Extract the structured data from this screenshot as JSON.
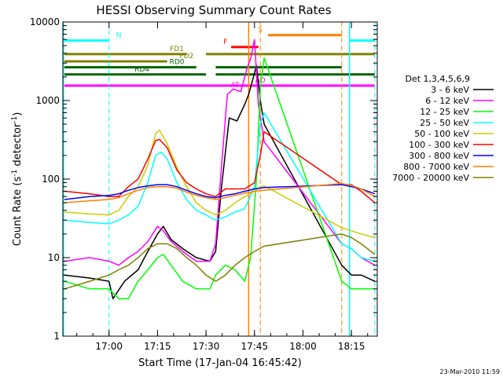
{
  "chart_data": {
    "type": "line",
    "title": "HESSI Observing Summary Count Rates",
    "xlabel": "Start Time (17-Jan-04 16:45:42)",
    "ylabel_parts": [
      "Count Rate (s",
      "-1",
      " detector",
      "-1",
      ")"
    ],
    "ylog": true,
    "ylim": [
      1,
      10000
    ],
    "xlim": [
      16.762,
      18.383
    ],
    "x_ticks": [
      {
        "x": 17.0,
        "label": "17:00"
      },
      {
        "x": 17.25,
        "label": "17:15"
      },
      {
        "x": 17.5,
        "label": "17:30"
      },
      {
        "x": 17.75,
        "label": "17:45"
      },
      {
        "x": 18.0,
        "label": "18:00"
      },
      {
        "x": 18.25,
        "label": "18:15"
      }
    ],
    "y_ticks": [
      {
        "y": 1,
        "label": "1"
      },
      {
        "y": 10,
        "label": "10"
      },
      {
        "y": 100,
        "label": "100"
      },
      {
        "y": 1000,
        "label": "1000"
      },
      {
        "y": 10000,
        "label": "10000"
      }
    ],
    "legend_title": "Det 1,3,4,5,6,9",
    "legend_placement": "right",
    "gaps": [
      [
        17.8,
        18.2
      ]
    ],
    "series": [
      {
        "name": "3 - 6 keV",
        "color": "#000000",
        "points": [
          [
            16.77,
            6
          ],
          [
            16.9,
            5.5
          ],
          [
            17.0,
            5
          ],
          [
            17.02,
            3
          ],
          [
            17.08,
            5
          ],
          [
            17.15,
            7
          ],
          [
            17.2,
            12
          ],
          [
            17.25,
            20
          ],
          [
            17.28,
            25
          ],
          [
            17.32,
            17
          ],
          [
            17.38,
            13
          ],
          [
            17.45,
            10
          ],
          [
            17.52,
            9
          ],
          [
            17.55,
            12
          ],
          [
            17.58,
            80
          ],
          [
            17.62,
            600
          ],
          [
            17.66,
            550
          ],
          [
            17.7,
            900
          ],
          [
            17.72,
            1200
          ],
          [
            17.74,
            1800
          ],
          [
            17.76,
            2800
          ],
          [
            17.78,
            1000
          ],
          [
            17.8,
            500
          ],
          [
            18.2,
            8
          ],
          [
            18.25,
            6
          ],
          [
            18.3,
            6
          ],
          [
            18.37,
            5
          ]
        ]
      },
      {
        "name": "6 - 12 keV",
        "color": "#ff00ff",
        "points": [
          [
            16.77,
            9
          ],
          [
            16.9,
            10
          ],
          [
            17.0,
            9
          ],
          [
            17.05,
            8
          ],
          [
            17.1,
            10
          ],
          [
            17.15,
            12
          ],
          [
            17.2,
            16
          ],
          [
            17.25,
            25
          ],
          [
            17.28,
            22
          ],
          [
            17.32,
            16
          ],
          [
            17.38,
            12
          ],
          [
            17.45,
            9
          ],
          [
            17.52,
            9
          ],
          [
            17.55,
            15
          ],
          [
            17.58,
            150
          ],
          [
            17.61,
            1200
          ],
          [
            17.64,
            1400
          ],
          [
            17.68,
            1300
          ],
          [
            17.71,
            2500
          ],
          [
            17.73,
            3400
          ],
          [
            17.75,
            6000
          ],
          [
            17.77,
            900
          ],
          [
            17.8,
            300
          ],
          [
            18.2,
            15
          ],
          [
            18.25,
            13
          ],
          [
            18.3,
            10
          ],
          [
            18.37,
            8
          ]
        ]
      },
      {
        "name": "12 - 25 keV",
        "color": "#00ff00",
        "points": [
          [
            16.77,
            5
          ],
          [
            16.9,
            4
          ],
          [
            17.0,
            4
          ],
          [
            17.05,
            3
          ],
          [
            17.1,
            3
          ],
          [
            17.15,
            5
          ],
          [
            17.2,
            7
          ],
          [
            17.25,
            10
          ],
          [
            17.28,
            11
          ],
          [
            17.32,
            8
          ],
          [
            17.38,
            5
          ],
          [
            17.45,
            4
          ],
          [
            17.52,
            4
          ],
          [
            17.55,
            6
          ],
          [
            17.6,
            8
          ],
          [
            17.65,
            7
          ],
          [
            17.7,
            5
          ],
          [
            17.73,
            10
          ],
          [
            17.76,
            100
          ],
          [
            17.78,
            1500
          ],
          [
            17.8,
            3500
          ],
          [
            18.2,
            5
          ],
          [
            18.25,
            4
          ],
          [
            18.3,
            4
          ],
          [
            18.37,
            4
          ]
        ]
      },
      {
        "name": "25 - 50 keV",
        "color": "#00ffff",
        "points": [
          [
            16.77,
            30
          ],
          [
            16.9,
            28
          ],
          [
            17.0,
            27
          ],
          [
            17.05,
            30
          ],
          [
            17.1,
            35
          ],
          [
            17.15,
            45
          ],
          [
            17.2,
            90
          ],
          [
            17.24,
            200
          ],
          [
            17.27,
            220
          ],
          [
            17.3,
            180
          ],
          [
            17.35,
            90
          ],
          [
            17.4,
            55
          ],
          [
            17.45,
            40
          ],
          [
            17.5,
            35
          ],
          [
            17.55,
            30
          ],
          [
            17.6,
            33
          ],
          [
            17.65,
            38
          ],
          [
            17.7,
            42
          ],
          [
            17.75,
            80
          ],
          [
            17.78,
            500
          ],
          [
            17.8,
            700
          ],
          [
            18.2,
            15
          ],
          [
            18.25,
            13
          ],
          [
            18.3,
            10
          ],
          [
            18.37,
            9
          ]
        ]
      },
      {
        "name": "50 - 100 keV",
        "color": "#cccc00",
        "points": [
          [
            16.77,
            38
          ],
          [
            16.9,
            36
          ],
          [
            17.0,
            35
          ],
          [
            17.05,
            40
          ],
          [
            17.1,
            60
          ],
          [
            17.15,
            80
          ],
          [
            17.2,
            150
          ],
          [
            17.24,
            380
          ],
          [
            17.26,
            420
          ],
          [
            17.3,
            280
          ],
          [
            17.35,
            140
          ],
          [
            17.4,
            80
          ],
          [
            17.45,
            50
          ],
          [
            17.5,
            40
          ],
          [
            17.55,
            35
          ],
          [
            17.6,
            40
          ],
          [
            17.65,
            50
          ],
          [
            17.7,
            60
          ],
          [
            17.75,
            70
          ],
          [
            17.78,
            80
          ],
          [
            17.8,
            82
          ],
          [
            18.2,
            24
          ],
          [
            18.25,
            22
          ],
          [
            18.3,
            20
          ],
          [
            18.37,
            18
          ]
        ]
      },
      {
        "name": "100 - 300 keV",
        "color": "#ff0000",
        "points": [
          [
            16.77,
            70
          ],
          [
            16.9,
            65
          ],
          [
            17.0,
            60
          ],
          [
            17.05,
            60
          ],
          [
            17.1,
            80
          ],
          [
            17.15,
            100
          ],
          [
            17.2,
            180
          ],
          [
            17.24,
            310
          ],
          [
            17.26,
            320
          ],
          [
            17.3,
            250
          ],
          [
            17.35,
            130
          ],
          [
            17.4,
            90
          ],
          [
            17.45,
            75
          ],
          [
            17.5,
            65
          ],
          [
            17.55,
            60
          ],
          [
            17.6,
            75
          ],
          [
            17.65,
            75
          ],
          [
            17.7,
            75
          ],
          [
            17.75,
            90
          ],
          [
            17.78,
            200
          ],
          [
            17.8,
            400
          ],
          [
            18.2,
            85
          ],
          [
            18.25,
            85
          ],
          [
            18.3,
            70
          ],
          [
            18.37,
            50
          ]
        ]
      },
      {
        "name": "300 - 800 keV",
        "color": "#0000ff",
        "points": [
          [
            16.77,
            55
          ],
          [
            16.9,
            60
          ],
          [
            17.0,
            62
          ],
          [
            17.05,
            65
          ],
          [
            17.1,
            72
          ],
          [
            17.15,
            78
          ],
          [
            17.2,
            82
          ],
          [
            17.25,
            85
          ],
          [
            17.3,
            85
          ],
          [
            17.35,
            80
          ],
          [
            17.4,
            72
          ],
          [
            17.45,
            65
          ],
          [
            17.5,
            60
          ],
          [
            17.55,
            58
          ],
          [
            17.6,
            62
          ],
          [
            17.65,
            65
          ],
          [
            17.7,
            70
          ],
          [
            17.75,
            75
          ],
          [
            17.8,
            78
          ],
          [
            18.2,
            85
          ],
          [
            18.25,
            80
          ],
          [
            18.3,
            75
          ],
          [
            18.37,
            65
          ]
        ]
      },
      {
        "name": "800 - 7000 keV",
        "color": "#ff8000",
        "points": [
          [
            16.77,
            50
          ],
          [
            16.9,
            53
          ],
          [
            17.0,
            55
          ],
          [
            17.05,
            58
          ],
          [
            17.1,
            65
          ],
          [
            17.15,
            72
          ],
          [
            17.2,
            78
          ],
          [
            17.25,
            80
          ],
          [
            17.3,
            80
          ],
          [
            17.35,
            76
          ],
          [
            17.4,
            68
          ],
          [
            17.45,
            62
          ],
          [
            17.5,
            58
          ],
          [
            17.55,
            55
          ],
          [
            17.6,
            58
          ],
          [
            17.65,
            62
          ],
          [
            17.7,
            66
          ],
          [
            17.75,
            70
          ],
          [
            17.8,
            72
          ],
          [
            18.2,
            88
          ],
          [
            18.25,
            83
          ],
          [
            18.3,
            75
          ],
          [
            18.37,
            60
          ]
        ]
      },
      {
        "name": "7000 - 20000 keV",
        "color": "#808000",
        "points": [
          [
            16.77,
            4
          ],
          [
            16.9,
            5
          ],
          [
            17.0,
            6
          ],
          [
            17.05,
            7
          ],
          [
            17.1,
            8
          ],
          [
            17.15,
            10
          ],
          [
            17.2,
            13
          ],
          [
            17.25,
            15
          ],
          [
            17.3,
            15
          ],
          [
            17.35,
            13
          ],
          [
            17.4,
            10
          ],
          [
            17.45,
            8
          ],
          [
            17.5,
            6
          ],
          [
            17.55,
            5
          ],
          [
            17.6,
            6
          ],
          [
            17.65,
            8
          ],
          [
            17.7,
            10
          ],
          [
            17.75,
            12
          ],
          [
            17.8,
            14
          ],
          [
            18.2,
            20
          ],
          [
            18.25,
            18
          ],
          [
            18.3,
            15
          ],
          [
            18.37,
            11
          ]
        ]
      }
    ],
    "dashed_markers": [
      {
        "x": 17.0,
        "color": "#00ffff"
      },
      {
        "x": 17.78,
        "color": "#ff8000"
      },
      {
        "x": 18.2,
        "color": "#ff8000"
      },
      {
        "x": 18.37,
        "color": "#00ffff"
      }
    ],
    "solid_markers": [
      {
        "x": 16.765,
        "color": "#00ffff"
      },
      {
        "x": 17.72,
        "color": "#ff8000"
      },
      {
        "x": 18.24,
        "color": "#00ffff"
      }
    ],
    "observing_flags": [
      {
        "label": "N",
        "label_x": 17.05,
        "value": 5800,
        "color": "#00ffff",
        "segments": [
          [
            16.77,
            17.0
          ],
          [
            18.24,
            18.37
          ]
        ]
      },
      {
        "label": "S",
        "label_x": 17.78,
        "value": 6800,
        "color": "#ff8000",
        "segments": [
          [
            17.82,
            18.2
          ]
        ]
      },
      {
        "label": "F",
        "label_x": 17.6,
        "value": 4800,
        "color": "#ff0000",
        "segments": [
          [
            17.63,
            17.77
          ]
        ]
      },
      {
        "label": "FD1",
        "label_x": 17.35,
        "value": 3900,
        "color": "#808000",
        "segments": [
          [
            16.77,
            17.4
          ],
          [
            17.5,
            18.37
          ]
        ]
      },
      {
        "label": "FD2",
        "label_x": 17.4,
        "value": 3150,
        "color": "#808000",
        "segments": [
          [
            16.77,
            17.3
          ]
        ]
      },
      {
        "label": "RD0",
        "label_x": 17.35,
        "value": 2650,
        "color": "#006400",
        "segments": [
          [
            16.77,
            17.45
          ],
          [
            17.55,
            18.2
          ]
        ]
      },
      {
        "label": "RD4",
        "label_x": 17.17,
        "value": 2150,
        "color": "#006400",
        "segments": [
          [
            16.77,
            17.5
          ],
          [
            17.55,
            18.37
          ]
        ]
      },
      {
        "label": "AT",
        "label_x": 17.65,
        "value": 1350,
        "color": "#ff00ff",
        "segments": []
      },
      {
        "label": "AO",
        "label_x": 17.78,
        "value": 1550,
        "color": "#ff00ff",
        "segments": [
          [
            16.77,
            18.37
          ]
        ]
      }
    ]
  },
  "footer_timestamp": "23-Mar-2010 11:59"
}
